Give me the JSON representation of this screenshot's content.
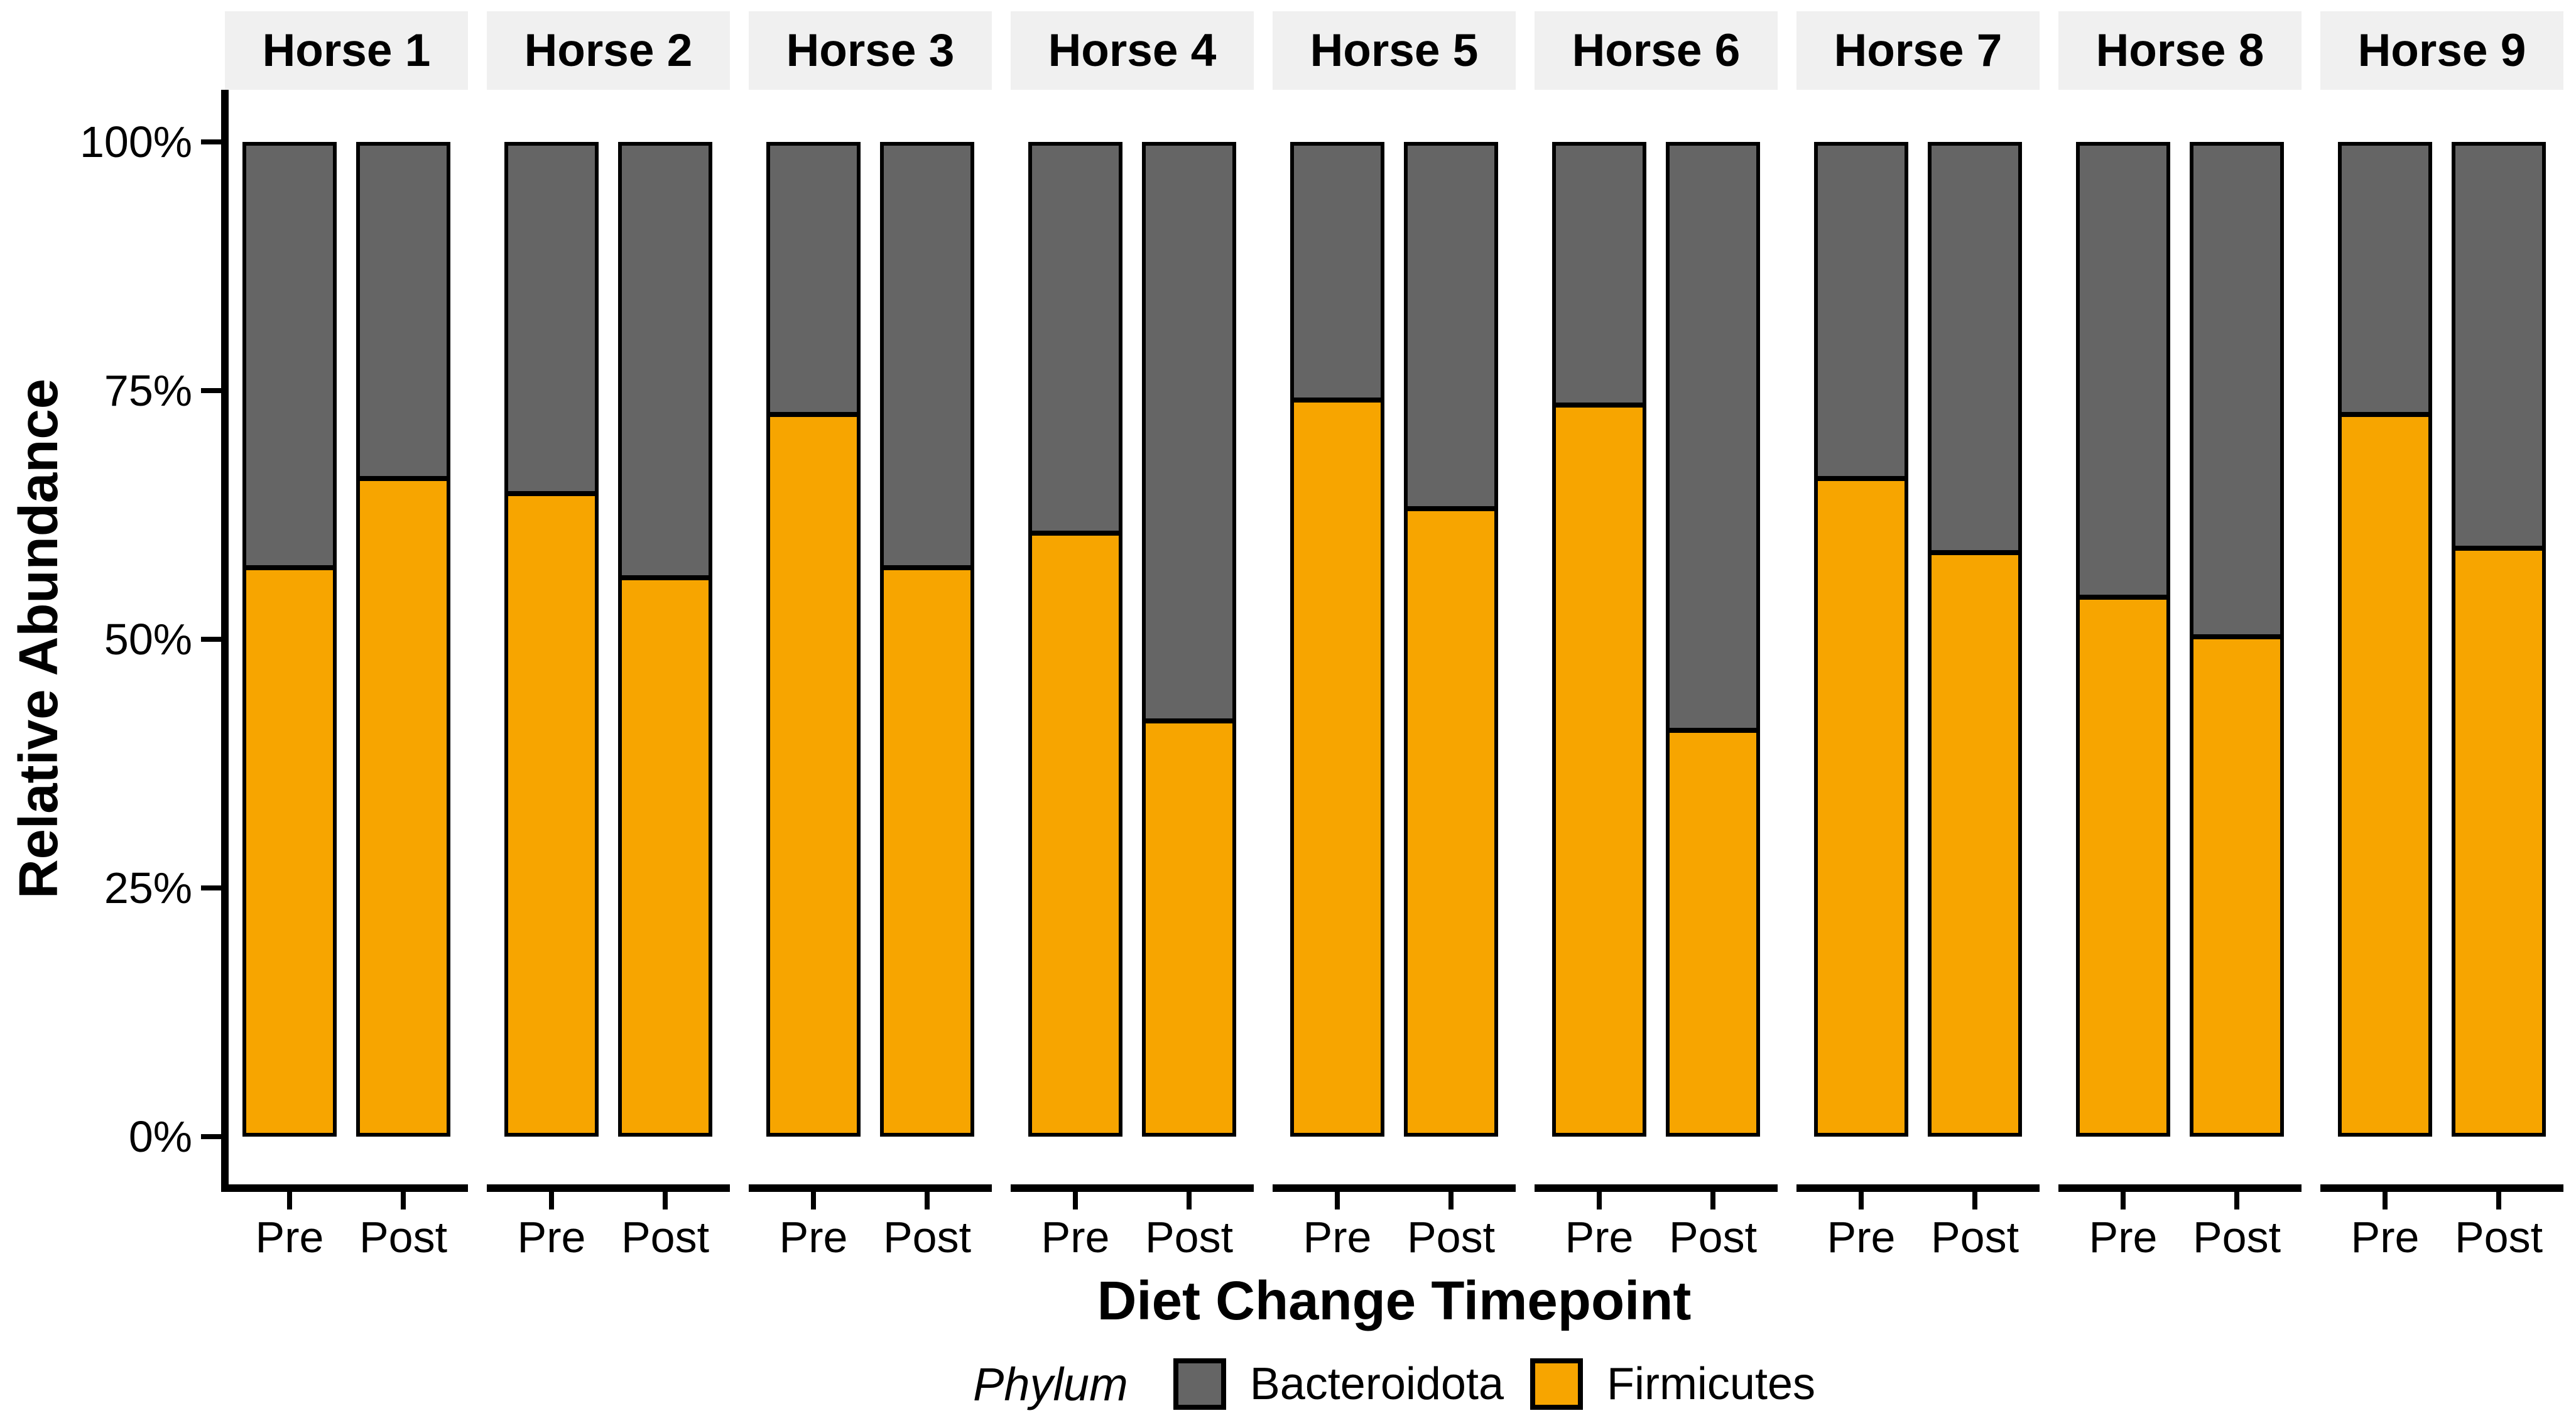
{
  "chart_data": {
    "type": "bar",
    "stacked": true,
    "orientation": "vertical",
    "facet_labels": [
      "Horse 1",
      "Horse 2",
      "Horse 3",
      "Horse 4",
      "Horse 5",
      "Horse 6",
      "Horse 7",
      "Horse 8",
      "Horse 9"
    ],
    "categories": [
      "Pre",
      "Post"
    ],
    "xlabel": "Diet Change Timepoint",
    "ylabel": "Relative Abundance",
    "ylim": [
      0,
      100
    ],
    "y_tick_labels": [
      "100%",
      "75%",
      "50%",
      "25%",
      "0%"
    ],
    "y_tick_values": [
      100,
      75,
      50,
      25,
      0
    ],
    "grid": false,
    "legend_position": "bottom",
    "legend_title": "Phylum",
    "series": [
      {
        "name": "Bacteroidota",
        "color": "#656565",
        "values_pre": [
          43,
          35.5,
          27.5,
          39.5,
          26,
          26.5,
          34,
          46,
          27.5
        ],
        "values_post": [
          34,
          44,
          43,
          58.5,
          37,
          59.5,
          41.5,
          50,
          41
        ]
      },
      {
        "name": "Firmicutes",
        "color": "#F7A500",
        "values_pre": [
          57,
          64.5,
          72.5,
          60.5,
          74,
          73.5,
          66,
          54,
          72.5
        ],
        "values_post": [
          66,
          56,
          57,
          41.5,
          63,
          40.5,
          58.5,
          50,
          59
        ]
      }
    ]
  },
  "y_axis": {
    "title": "Relative Abundance",
    "ticks": [
      "100%",
      "75%",
      "50%",
      "25%",
      "0%"
    ]
  },
  "x_axis": {
    "title": "Diet Change Timepoint",
    "tick_labels": [
      "Pre",
      "Post"
    ]
  },
  "legend": {
    "title": "Phylum",
    "items": [
      {
        "label": "Bacteroidota",
        "color": "#656565"
      },
      {
        "label": "Firmicutes",
        "color": "#F7A500"
      }
    ]
  },
  "facets": [
    {
      "label": "Horse 1",
      "pre_firmicutes": 57,
      "pre_bacteroidota": 43,
      "post_firmicutes": 66,
      "post_bacteroidota": 34
    },
    {
      "label": "Horse 2",
      "pre_firmicutes": 64.5,
      "pre_bacteroidota": 35.5,
      "post_firmicutes": 56,
      "post_bacteroidota": 44
    },
    {
      "label": "Horse 3",
      "pre_firmicutes": 72.5,
      "pre_bacteroidota": 27.5,
      "post_firmicutes": 57,
      "post_bacteroidota": 43
    },
    {
      "label": "Horse 4",
      "pre_firmicutes": 60.5,
      "pre_bacteroidota": 39.5,
      "post_firmicutes": 41.5,
      "post_bacteroidota": 58.5
    },
    {
      "label": "Horse 5",
      "pre_firmicutes": 74,
      "pre_bacteroidota": 26,
      "post_firmicutes": 63,
      "post_bacteroidota": 37
    },
    {
      "label": "Horse 6",
      "pre_firmicutes": 73.5,
      "pre_bacteroidota": 26.5,
      "post_firmicutes": 40.5,
      "post_bacteroidota": 59.5
    },
    {
      "label": "Horse 7",
      "pre_firmicutes": 66,
      "pre_bacteroidota": 34,
      "post_firmicutes": 58.5,
      "post_bacteroidota": 41.5
    },
    {
      "label": "Horse 8",
      "pre_firmicutes": 54,
      "pre_bacteroidota": 46,
      "post_firmicutes": 50,
      "post_bacteroidota": 50
    },
    {
      "label": "Horse 9",
      "pre_firmicutes": 72.5,
      "pre_bacteroidota": 27.5,
      "post_firmicutes": 59,
      "post_bacteroidota": 41
    }
  ],
  "colors": {
    "firmicutes": "#F7A500",
    "bacteroidota": "#656565",
    "strip_background": "#F0F0F0",
    "axis": "#000000",
    "background": "#FFFFFF"
  }
}
